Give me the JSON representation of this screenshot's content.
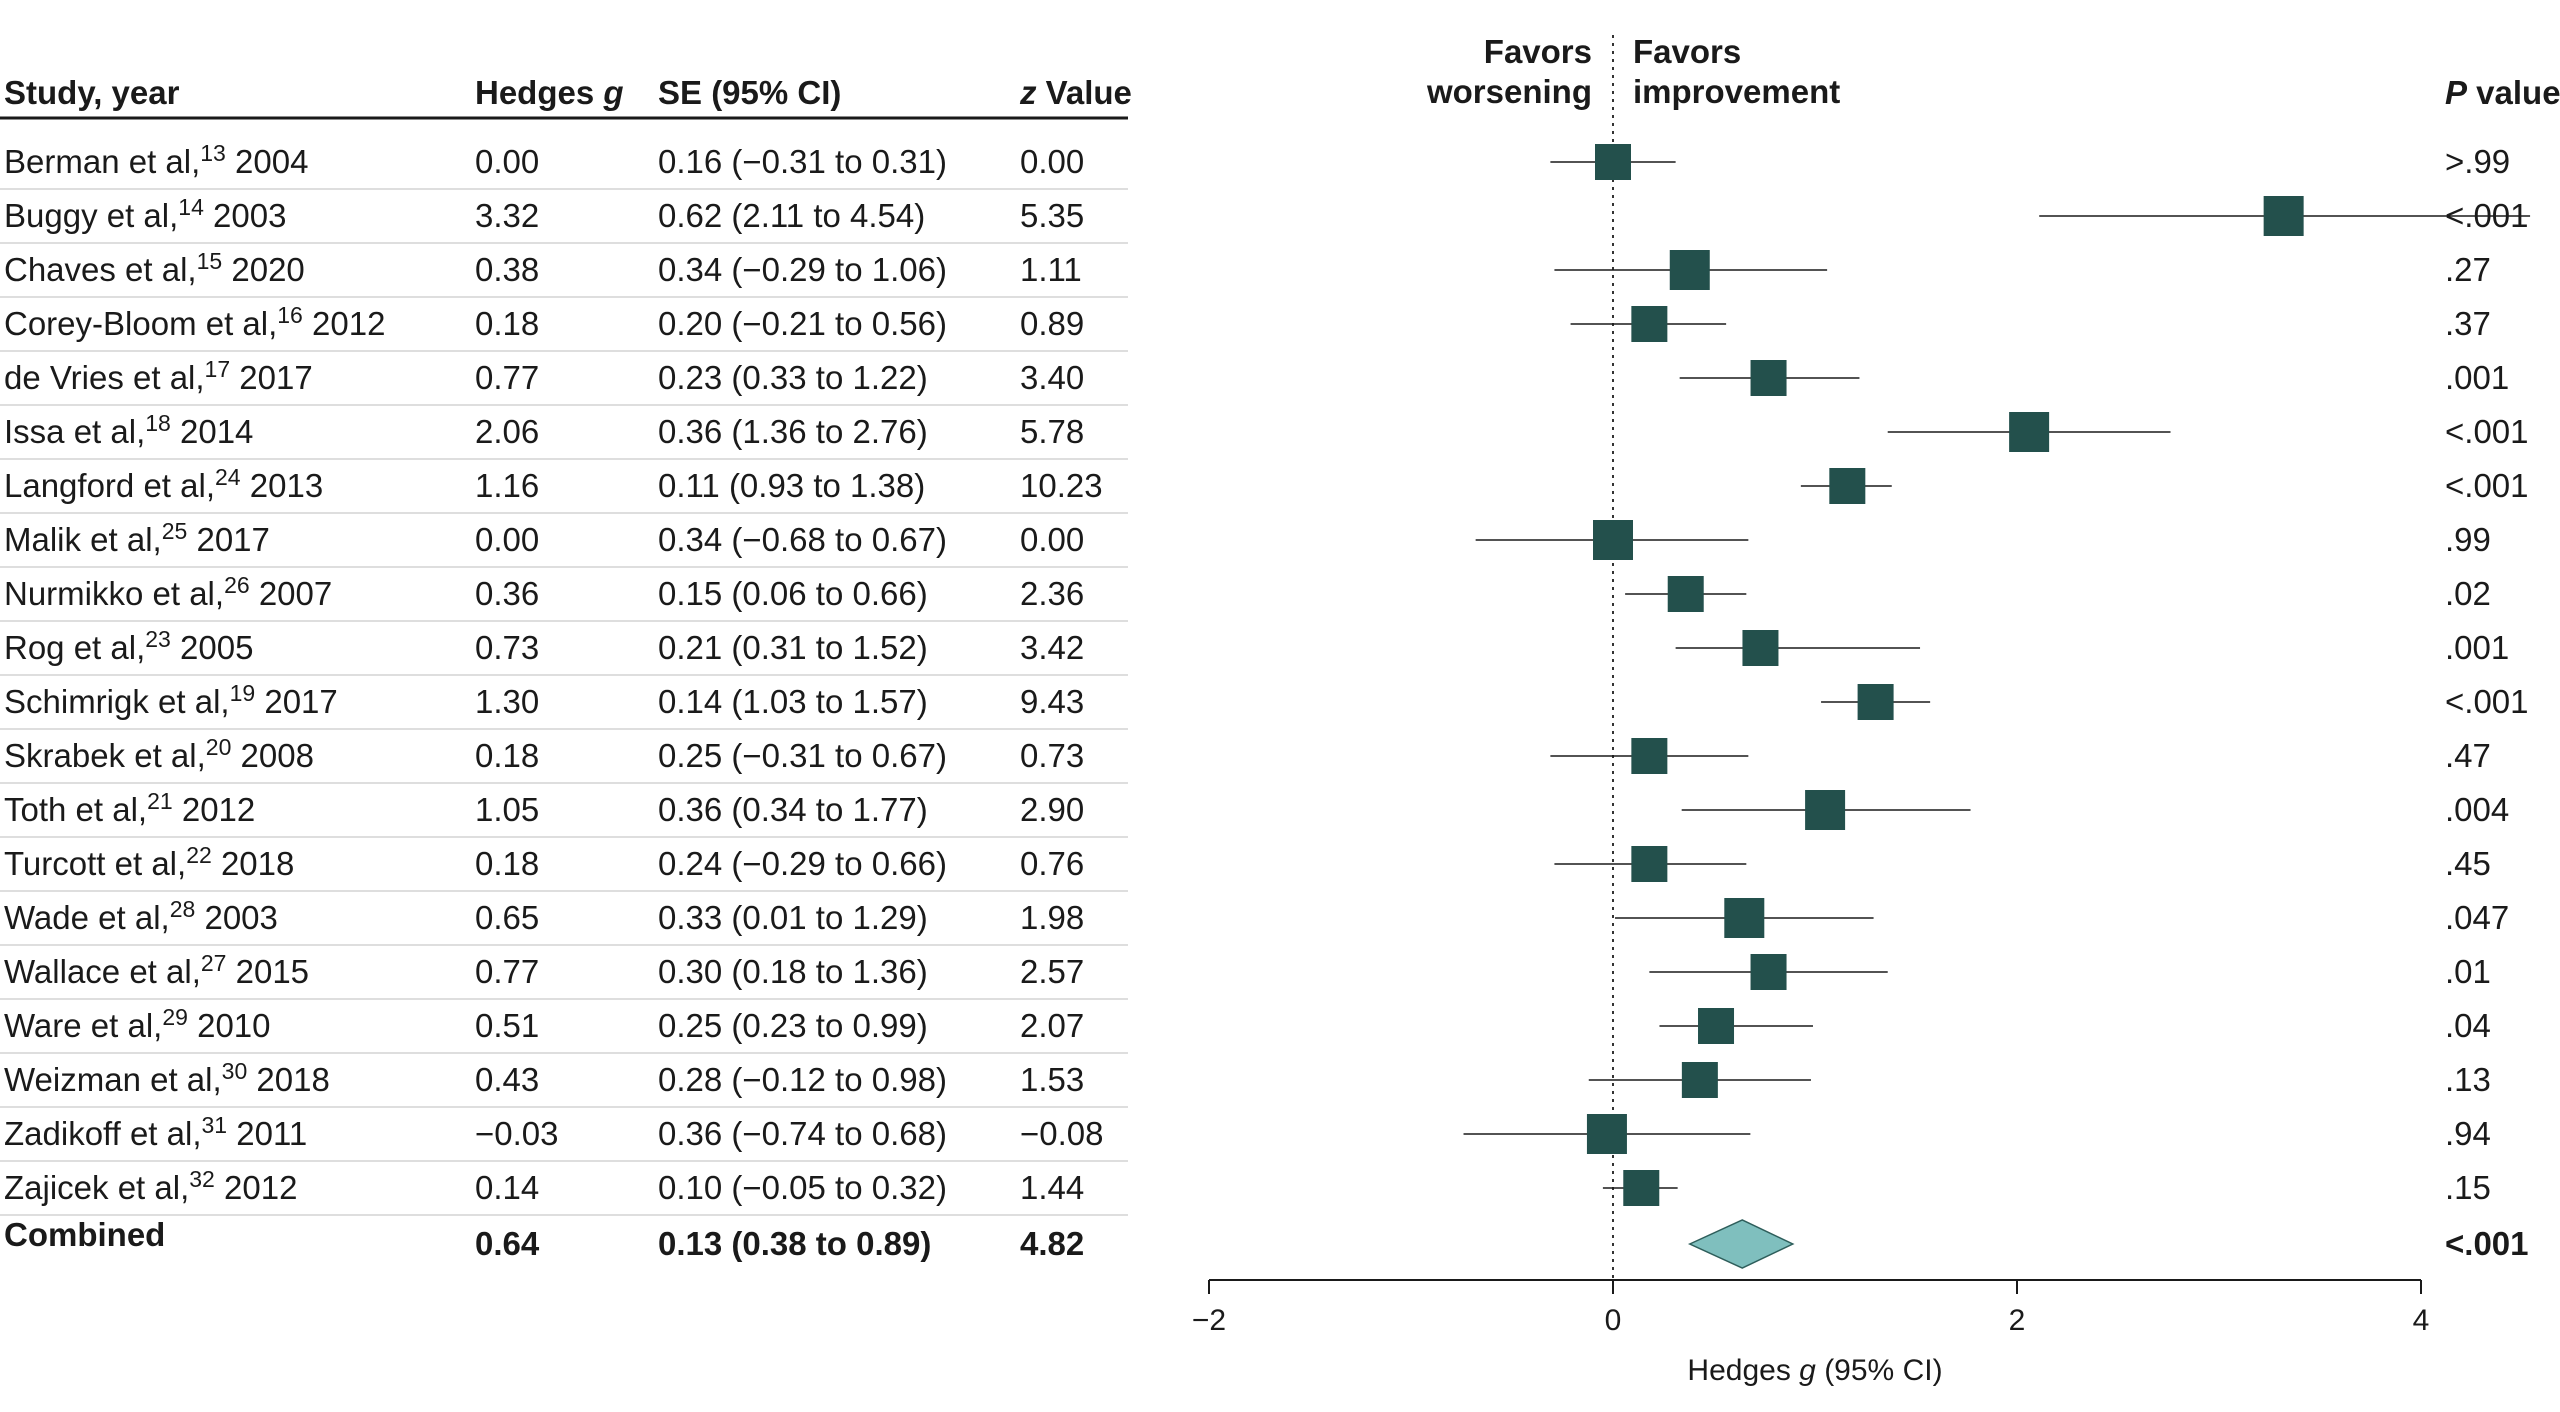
{
  "chart_data": {
    "type": "forest",
    "columns": {
      "study": "Study, year",
      "hedges_g_prefix": "Hedges ",
      "hedges_g_italic": "g",
      "se": "SE (95% CI)",
      "z_italic": "z",
      "z_suffix": " Value",
      "p_italic": "P",
      "p_suffix": " value"
    },
    "favors_left": [
      "Favors",
      "worsening"
    ],
    "favors_right": [
      "Favors",
      "improvement"
    ],
    "xaxis": {
      "label_prefix": "Hedges ",
      "label_italic": "g",
      "label_suffix": " (95% CI)",
      "range": [
        -2,
        4
      ],
      "ticks": [
        -2,
        0,
        2,
        4
      ],
      "tick_labels": [
        "−2",
        "0",
        "2",
        "4"
      ],
      "reference_line": 0
    },
    "colors": {
      "marker": "#23504c",
      "diamond": "#7fbfbe",
      "diamond_stroke": "#2e5e5b",
      "line": "#1a1a1a"
    },
    "studies": [
      {
        "author": "Berman et al,",
        "ref": "13",
        "year": "2004",
        "g_text": "0.00",
        "se_text": "0.16 (−0.31 to 0.31)",
        "z_text": "0.00",
        "p_text": ">.99",
        "g": 0.0,
        "lo": -0.31,
        "hi": 0.31,
        "weight": 0.16
      },
      {
        "author": "Buggy et al,",
        "ref": "14",
        "year": "2003",
        "g_text": "3.32",
        "se_text": "0.62 (2.11 to 4.54)",
        "z_text": "5.35",
        "p_text": "<.001",
        "g": 3.32,
        "lo": 2.11,
        "hi": 4.54,
        "weight": 0.62
      },
      {
        "author": "Chaves et al,",
        "ref": "15",
        "year": "2020",
        "g_text": "0.38",
        "se_text": "0.34 (−0.29 to 1.06)",
        "z_text": "1.11",
        "p_text": ".27",
        "g": 0.38,
        "lo": -0.29,
        "hi": 1.06,
        "weight": 0.34
      },
      {
        "author": "Corey-Bloom et al,",
        "ref": "16",
        "year": "2012",
        "g_text": "0.18",
        "se_text": "0.20 (−0.21 to 0.56)",
        "z_text": "0.89",
        "p_text": ".37",
        "g": 0.18,
        "lo": -0.21,
        "hi": 0.56,
        "weight": 0.2
      },
      {
        "author": "de Vries et al,",
        "ref": "17",
        "year": "2017",
        "g_text": "0.77",
        "se_text": "0.23 (0.33 to 1.22)",
        "z_text": "3.40",
        "p_text": ".001",
        "g": 0.77,
        "lo": 0.33,
        "hi": 1.22,
        "weight": 0.23
      },
      {
        "author": "Issa et al,",
        "ref": "18",
        "year": "2014",
        "g_text": "2.06",
        "se_text": "0.36 (1.36 to 2.76)",
        "z_text": "5.78",
        "p_text": "<.001",
        "g": 2.06,
        "lo": 1.36,
        "hi": 2.76,
        "weight": 0.36
      },
      {
        "author": "Langford et al,",
        "ref": "24",
        "year": "2013",
        "g_text": "1.16",
        "se_text": "0.11 (0.93 to 1.38)",
        "z_text": "10.23",
        "p_text": "<.001",
        "g": 1.16,
        "lo": 0.93,
        "hi": 1.38,
        "weight": 0.11
      },
      {
        "author": "Malik et al,",
        "ref": "25",
        "year": "2017",
        "g_text": "0.00",
        "se_text": "0.34 (−0.68 to 0.67)",
        "z_text": "0.00",
        "p_text": ".99",
        "g": 0.0,
        "lo": -0.68,
        "hi": 0.67,
        "weight": 0.34
      },
      {
        "author": "Nurmikko et al,",
        "ref": "26",
        "year": "2007",
        "g_text": "0.36",
        "se_text": "0.15 (0.06 to 0.66)",
        "z_text": "2.36",
        "p_text": ".02",
        "g": 0.36,
        "lo": 0.06,
        "hi": 0.66,
        "weight": 0.15
      },
      {
        "author": "Rog et al,",
        "ref": "23",
        "year": "2005",
        "g_text": "0.73",
        "se_text": "0.21 (0.31 to 1.52)",
        "z_text": "3.42",
        "p_text": ".001",
        "g": 0.73,
        "lo": 0.31,
        "hi": 1.52,
        "weight": 0.21
      },
      {
        "author": "Schimrigk et al,",
        "ref": "19",
        "year": "2017",
        "g_text": "1.30",
        "se_text": "0.14 (1.03 to 1.57)",
        "z_text": "9.43",
        "p_text": "<.001",
        "g": 1.3,
        "lo": 1.03,
        "hi": 1.57,
        "weight": 0.14
      },
      {
        "author": "Skrabek et al,",
        "ref": "20",
        "year": "2008",
        "g_text": "0.18",
        "se_text": "0.25 (−0.31 to 0.67)",
        "z_text": "0.73",
        "p_text": ".47",
        "g": 0.18,
        "lo": -0.31,
        "hi": 0.67,
        "weight": 0.25
      },
      {
        "author": "Toth et al,",
        "ref": "21",
        "year": "2012",
        "g_text": "1.05",
        "se_text": "0.36 (0.34 to 1.77)",
        "z_text": "2.90",
        "p_text": ".004",
        "g": 1.05,
        "lo": 0.34,
        "hi": 1.77,
        "weight": 0.36
      },
      {
        "author": "Turcott et al,",
        "ref": "22",
        "year": "2018",
        "g_text": "0.18",
        "se_text": "0.24 (−0.29 to 0.66)",
        "z_text": "0.76",
        "p_text": ".45",
        "g": 0.18,
        "lo": -0.29,
        "hi": 0.66,
        "weight": 0.24
      },
      {
        "author": "Wade et al,",
        "ref": "28",
        "year": "2003",
        "g_text": "0.65",
        "se_text": "0.33 (0.01 to 1.29)",
        "z_text": "1.98",
        "p_text": ".047",
        "g": 0.65,
        "lo": 0.01,
        "hi": 1.29,
        "weight": 0.33
      },
      {
        "author": "Wallace et al,",
        "ref": "27",
        "year": "2015",
        "g_text": "0.77",
        "se_text": "0.30 (0.18 to 1.36)",
        "z_text": "2.57",
        "p_text": ".01",
        "g": 0.77,
        "lo": 0.18,
        "hi": 1.36,
        "weight": 0.3
      },
      {
        "author": "Ware et al,",
        "ref": "29",
        "year": "2010",
        "g_text": "0.51",
        "se_text": "0.25 (0.23 to 0.99)",
        "z_text": "2.07",
        "p_text": ".04",
        "g": 0.51,
        "lo": 0.23,
        "hi": 0.99,
        "weight": 0.25
      },
      {
        "author": "Weizman et al,",
        "ref": "30",
        "year": "2018",
        "g_text": "0.43",
        "se_text": "0.28 (−0.12 to 0.98)",
        "z_text": "1.53",
        "p_text": ".13",
        "g": 0.43,
        "lo": -0.12,
        "hi": 0.98,
        "weight": 0.28
      },
      {
        "author": "Zadikoff et al,",
        "ref": "31",
        "year": "2011",
        "g_text": "−0.03",
        "se_text": "0.36 (−0.74 to 0.68)",
        "z_text": "−0.08",
        "p_text": ".94",
        "g": -0.03,
        "lo": -0.74,
        "hi": 0.68,
        "weight": 0.36
      },
      {
        "author": "Zajicek et al,",
        "ref": "32",
        "year": "2012",
        "g_text": "0.14",
        "se_text": "0.10 (−0.05 to 0.32)",
        "z_text": "1.44",
        "p_text": ".15",
        "g": 0.14,
        "lo": -0.05,
        "hi": 0.32,
        "weight": 0.1
      }
    ],
    "combined": {
      "label": "Combined",
      "g_text": "0.64",
      "se_text": "0.13 (0.38 to 0.89)",
      "z_text": "4.82",
      "p_text": "<.001",
      "g": 0.64,
      "lo": 0.38,
      "hi": 0.89
    }
  }
}
